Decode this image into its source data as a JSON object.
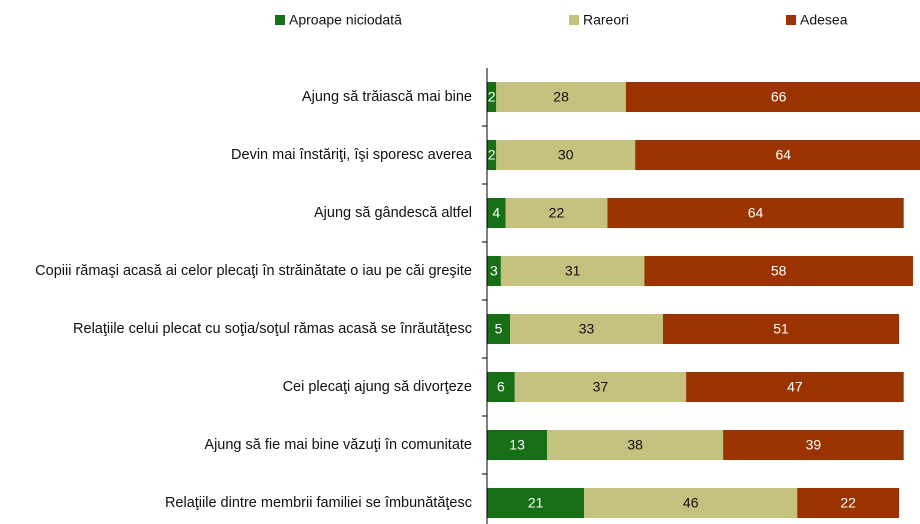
{
  "chart_data": {
    "type": "stacked-barh",
    "categories": [
      "Ajung să trăiască mai bine",
      "Devin mai înstăriţi, îşi sporesc averea",
      "Ajung să gândescă altfel",
      "Copiii rămaşi acasă ai celor plecaţi în străinătate o iau pe căi greşite",
      "Relaţiile celui plecat cu soţia/soţul rămas acasă se înrăutăţesc",
      "Cei plecaţi ajung să divorţeze",
      "Ajung să fie mai bine văzuţi în comunitate",
      "Relaţiile dintre membrii familiei se îmbunătăţesc"
    ],
    "series": [
      {
        "name": "Aproape niciodată",
        "color": "#166e16",
        "values": [
          2,
          2,
          4,
          3,
          5,
          6,
          13,
          21
        ]
      },
      {
        "name": "Rareori",
        "color": "#c4c27e",
        "values": [
          28,
          30,
          22,
          31,
          33,
          37,
          38,
          46
        ]
      },
      {
        "name": "Adesea",
        "color": "#9a3300",
        "values": [
          66,
          64,
          64,
          58,
          51,
          47,
          39,
          22
        ]
      }
    ],
    "xlim": [
      0,
      100
    ]
  }
}
